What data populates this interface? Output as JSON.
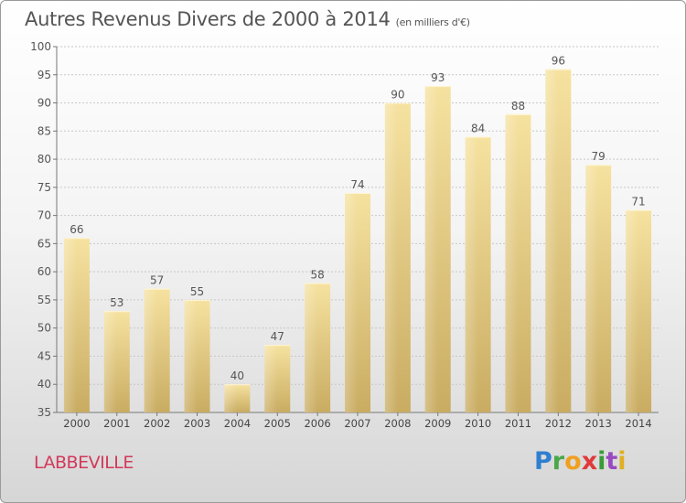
{
  "title": "Autres Revenus Divers de 2000 à 2014",
  "subtitle": "(en milliers d'€)",
  "place": "LABBEVILLE",
  "logo_text": "Proxiti",
  "colors": {
    "bar_light": "#f6e2a0",
    "bar_dark": "#c9ac62",
    "place": "#d2395a",
    "grid": "#c8c8c8",
    "text": "#555555"
  },
  "chart_data": {
    "type": "bar",
    "title": "Autres Revenus Divers de 2000 à 2014",
    "subtitle": "(en milliers d'€)",
    "categories": [
      "2000",
      "2001",
      "2002",
      "2003",
      "2004",
      "2005",
      "2006",
      "2007",
      "2008",
      "2009",
      "2010",
      "2011",
      "2012",
      "2013",
      "2014"
    ],
    "values": [
      66,
      53,
      57,
      55,
      40,
      47,
      58,
      74,
      90,
      93,
      84,
      88,
      96,
      79,
      71
    ],
    "ylim": [
      35,
      100
    ],
    "yticks": [
      35,
      40,
      45,
      50,
      55,
      60,
      65,
      70,
      75,
      80,
      85,
      90,
      95,
      100
    ],
    "grid": true,
    "data_labels": true
  }
}
